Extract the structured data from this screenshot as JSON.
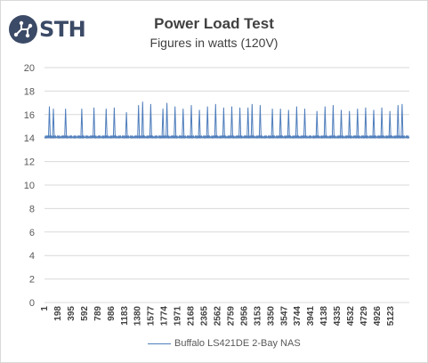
{
  "logo": {
    "text": "STH",
    "icon": "circuit-node-icon"
  },
  "colors": {
    "series": "#4e7dbc",
    "grid": "#d9d9d9",
    "logo_blue": "#3b4a66"
  },
  "chart_data": {
    "type": "line",
    "title": "Power Load Test",
    "subtitle": "Figures in watts (120V)",
    "xlabel": "",
    "ylabel": "",
    "ylim": [
      0,
      20
    ],
    "yticks": [
      0,
      2,
      4,
      6,
      8,
      10,
      12,
      14,
      16,
      18,
      20
    ],
    "xlim": [
      1,
      5400
    ],
    "xticks": [
      1,
      198,
      395,
      592,
      789,
      986,
      1183,
      1380,
      1577,
      1774,
      1971,
      2168,
      2365,
      2562,
      2759,
      2956,
      3153,
      3350,
      3547,
      3744,
      3941,
      4138,
      4335,
      4532,
      4729,
      4926,
      5123
    ],
    "grid": true,
    "legend_position": "bottom",
    "series": [
      {
        "name": "Buffalo LS421DE 2-Bay NAS",
        "baseline": 14.1,
        "x": [
          1,
          60,
          120,
          180,
          240,
          300,
          360,
          420,
          480,
          540,
          600,
          660,
          720,
          780,
          840,
          900,
          960,
          1020,
          1080,
          1140,
          1200,
          1260,
          1320,
          1380,
          1440,
          1500,
          1560,
          1620,
          1680,
          1740,
          1800,
          1860,
          1920,
          1980,
          2040,
          2100,
          2160,
          2220,
          2280,
          2340,
          2400,
          2460,
          2520,
          2580,
          2640,
          2700,
          2760,
          2820,
          2880,
          2940,
          3000,
          3060,
          3120,
          3180,
          3240,
          3300,
          3360,
          3420,
          3480,
          3540,
          3600,
          3660,
          3720,
          3780,
          3840,
          3900,
          3960,
          4020,
          4080,
          4140,
          4200,
          4260,
          4320,
          4380,
          4440,
          4500,
          4560,
          4620,
          4680,
          4740,
          4800,
          4860,
          4920,
          4980,
          5040,
          5100,
          5160,
          5220,
          5280,
          5340,
          5400
        ],
        "values": [
          14.2,
          16.7,
          16.5,
          14.1,
          14.2,
          16.5,
          14.1,
          14.3,
          14.0,
          16.5,
          14.2,
          14.1,
          16.6,
          14.1,
          14.3,
          16.5,
          14.1,
          16.6,
          14.2,
          14.1,
          16.2,
          14.2,
          14.0,
          16.8,
          17.1,
          14.2,
          16.9,
          14.1,
          14.3,
          16.5,
          17.0,
          14.1,
          16.7,
          14.2,
          16.5,
          14.1,
          16.8,
          14.2,
          16.4,
          14.1,
          16.7,
          14.0,
          16.9,
          14.1,
          16.6,
          14.2,
          16.7,
          14.1,
          16.6,
          14.3,
          16.6,
          16.9,
          14.1,
          16.8,
          14.2,
          14.1,
          16.5,
          14.2,
          16.5,
          14.1,
          16.4,
          14.0,
          16.7,
          14.1,
          16.5,
          14.2,
          14.1,
          16.3,
          14.2,
          16.7,
          14.1,
          16.8,
          14.0,
          16.4,
          14.2,
          16.3,
          14.1,
          16.5,
          14.2,
          16.6,
          14.1,
          16.4,
          14.2,
          16.6,
          14.1,
          16.3,
          14.2,
          16.8,
          16.9,
          14.2,
          14.3
        ]
      }
    ]
  }
}
